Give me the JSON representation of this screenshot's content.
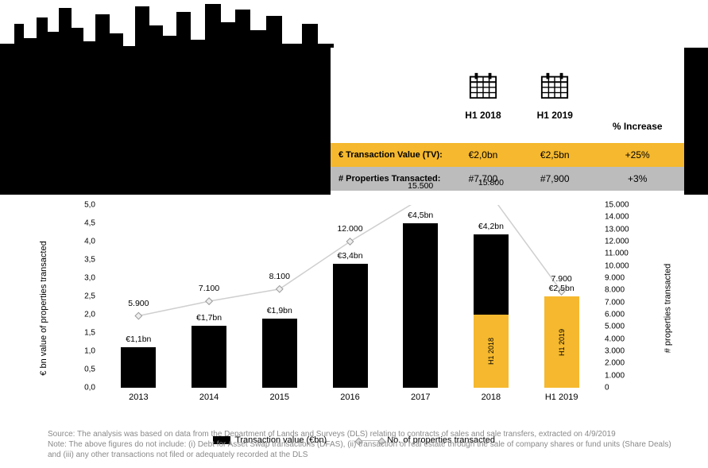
{
  "colors": {
    "black": "#000000",
    "orange": "#f5b82e",
    "grey": "#bcbcbc",
    "line": "#cfcfcf",
    "note": "#8a8a8a"
  },
  "header_table": {
    "col_labels": [
      "H1 2018",
      "H1 2019",
      "% Increase"
    ],
    "rows": [
      {
        "style": "orange",
        "label": "€ Transaction Value (TV):",
        "cells": [
          "€2,0bn",
          "€2,5bn",
          "+25%"
        ]
      },
      {
        "style": "grey",
        "label": "# Properties Transacted:",
        "cells": [
          "#7,700",
          "#7,900",
          "+3%"
        ]
      }
    ]
  },
  "chart": {
    "type": "bar+line",
    "y_left": {
      "title": "€ bn value of properties transacted",
      "min": 0,
      "max": 5,
      "step": 0.5,
      "labels": [
        "0,0",
        "0,5",
        "1,0",
        "1,5",
        "2,0",
        "2,5",
        "3,0",
        "3,5",
        "4,0",
        "4,5",
        "5,0"
      ]
    },
    "y_right": {
      "title": "# properties transacted",
      "min": 0,
      "max": 15000,
      "step": 1000,
      "labels": [
        "0",
        "1.000",
        "2.000",
        "3.000",
        "4.000",
        "5.000",
        "6.000",
        "7.000",
        "8.000",
        "9.000",
        "10.000",
        "11.000",
        "12.000",
        "13.000",
        "14.000",
        "15.000"
      ]
    },
    "categories": [
      "2013",
      "2014",
      "2015",
      "2016",
      "2017",
      "2018",
      "H1 2019"
    ],
    "bars": [
      {
        "value": 1.1,
        "label": "€1,1bn",
        "h1_value": null
      },
      {
        "value": 1.7,
        "label": "€1,7bn",
        "h1_value": null
      },
      {
        "value": 1.9,
        "label": "€1,9bn",
        "h1_value": null
      },
      {
        "value": 3.4,
        "label": "€3,4bn",
        "h1_value": null
      },
      {
        "value": 4.5,
        "label": "€4,5bn",
        "h1_value": null
      },
      {
        "value": 4.2,
        "label": "€4,2bn",
        "h1_value": 2.0,
        "h1_label": "H1 2018"
      },
      {
        "value": 2.5,
        "label": "€2,5bn",
        "h1_value": 2.5,
        "h1_label": "H1 2019",
        "only_h1": true
      }
    ],
    "line": {
      "values": [
        5900,
        7100,
        8100,
        12000,
        15500,
        15800,
        7900
      ],
      "labels": [
        "5.900",
        "7.100",
        "8.100",
        "12.000",
        "15.500",
        "15.800",
        "7.900"
      ]
    },
    "legend": {
      "bar": "Transaction value (€bn)",
      "line": "No. of properties transacted"
    }
  },
  "footer": {
    "l1": "Source: The analysis was based on data from the Department of Lands and Surveys (DLS) relating to contracts of sales and sale transfers, extracted on 4/9/2019",
    "l2": "Note: The above figures do not include: (i) Debt for Asset Swap transactions (DFAS), (ii) transaction of real estate through the sale of company shares or fund units (Share Deals) and (iii) any other transactions not filed or adequately recorded at the DLS"
  }
}
